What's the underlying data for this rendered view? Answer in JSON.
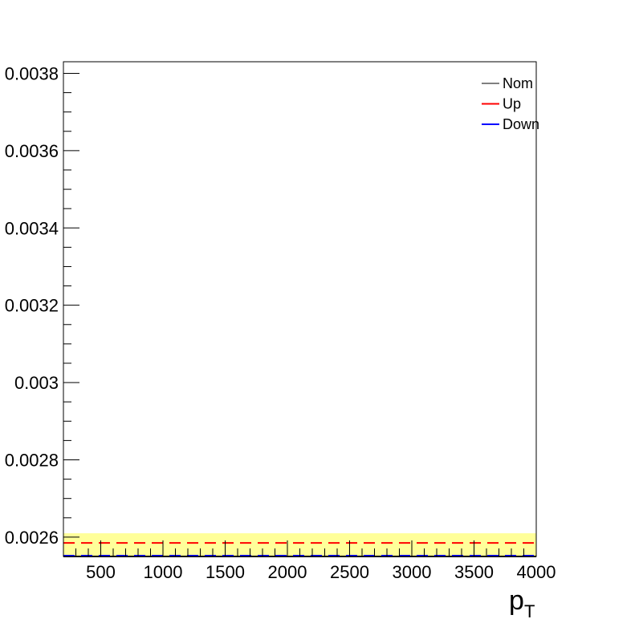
{
  "chart_data": {
    "type": "line",
    "xlabel": "p",
    "xlabel_sub": "T",
    "ylabel": "",
    "xlim": [
      200,
      4000
    ],
    "ylim": [
      0.00255,
      0.00383
    ],
    "x_ticks": [
      500,
      1000,
      1500,
      2000,
      2500,
      3000,
      3500,
      4000
    ],
    "x_tick_labels": [
      "500",
      "1000",
      "1500",
      "2000",
      "2500",
      "3000",
      "3500",
      "4000"
    ],
    "y_ticks": [
      0.0026,
      0.0028,
      0.003,
      0.0032,
      0.0034,
      0.0036,
      0.0038
    ],
    "y_tick_labels": [
      "0.0026",
      "0.0028",
      "0.003",
      "0.0032",
      "0.0034",
      "0.0036",
      "0.0038"
    ],
    "band": {
      "y_low": 0.00255,
      "y_high": 0.00261,
      "color": "#ffff99"
    },
    "series": [
      {
        "name": "Nom",
        "color": "#000000",
        "style": "solid",
        "x": [
          200,
          4000
        ],
        "y": [
          0.00255,
          0.00255
        ]
      },
      {
        "name": "Up",
        "color": "#ff0000",
        "style": "dashed",
        "x": [
          200,
          4000
        ],
        "y": [
          0.002585,
          0.002585
        ]
      },
      {
        "name": "Down",
        "color": "#0000ff",
        "style": "dashed",
        "x": [
          200,
          4000
        ],
        "y": [
          0.00255,
          0.00255
        ]
      }
    ],
    "legend": {
      "position": "top-right",
      "entries": [
        {
          "label": "Nom",
          "color": "#000000"
        },
        {
          "label": "Up",
          "color": "#ff0000"
        },
        {
          "label": "Down",
          "color": "#0000ff"
        }
      ]
    }
  }
}
